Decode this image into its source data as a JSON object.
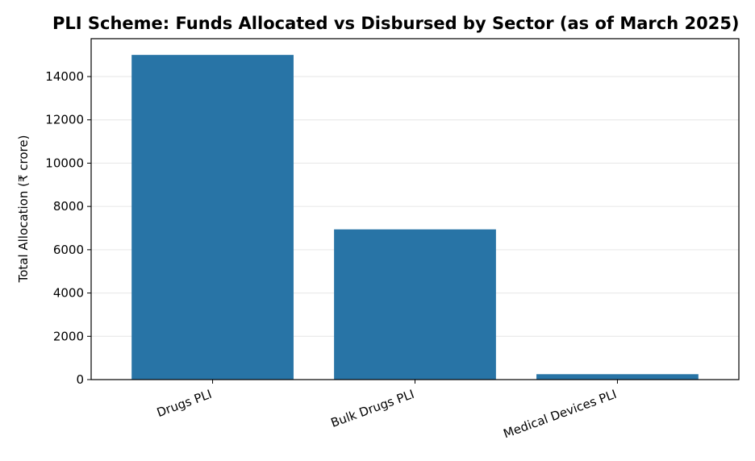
{
  "chart_data": {
    "type": "bar",
    "title": "PLI Scheme: Funds Allocated vs Disbursed by Sector (as of March 2025)",
    "xlabel": "",
    "ylabel": "Total Allocation (₹ crore)",
    "categories": [
      "Drugs PLI",
      "Bulk Drugs PLI",
      "Medical Devices PLI"
    ],
    "values": [
      15000,
      6940,
      250
    ],
    "ylim": [
      0,
      15750
    ],
    "yticks": [
      0,
      2000,
      4000,
      6000,
      8000,
      10000,
      12000,
      14000
    ],
    "bar_color": "#2874a6",
    "grid": "horizontal",
    "legend": "none"
  }
}
